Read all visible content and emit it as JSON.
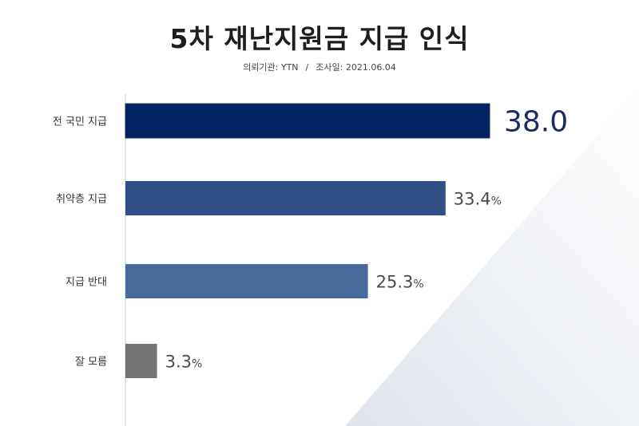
{
  "title": "5차 재난지원금 지급 인식",
  "subtitle": {
    "source": "의뢰기관: YTN",
    "separator": "/",
    "date": "조사일: 2021.06.04"
  },
  "colors": {
    "bars": [
      "#012462",
      "#2f4f86",
      "#476c9c",
      "#737373"
    ],
    "highlight_label": "#1c2a66",
    "label": "#4b4b4b",
    "axis": "#c8c8c8"
  },
  "chart_data": {
    "type": "bar",
    "orientation": "horizontal",
    "categories": [
      "전 국민 지급",
      "취약층 지급",
      "지급 반대",
      "잘 모름"
    ],
    "values": [
      38.0,
      33.4,
      25.3,
      3.3
    ],
    "value_labels": [
      "38.0",
      "33.4",
      "25.3",
      "3.3"
    ],
    "unit_labels": [
      "",
      "%",
      "%",
      "%"
    ],
    "title": "5차 재난지원금 지급 인식",
    "xlabel": "",
    "ylabel": "",
    "xlim": [
      0,
      45
    ],
    "grid": false,
    "legend": "none"
  }
}
